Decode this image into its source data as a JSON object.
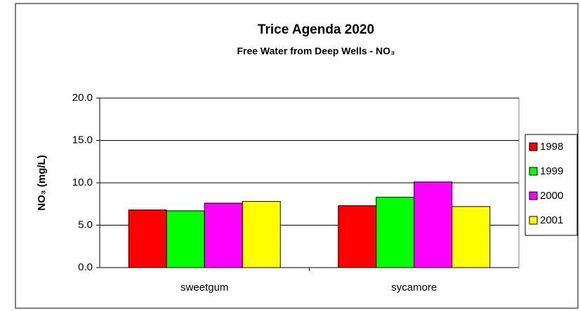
{
  "chart_data": {
    "type": "bar",
    "title": "Trice Agenda 2020",
    "subtitle": "Free Water from Deep Wells - NO₃",
    "y_label": "NO₃ (mg/L)",
    "categories": [
      "sweetgum",
      "sycamore"
    ],
    "series": [
      {
        "name": "1998",
        "color": "#ff0000",
        "values": [
          6.8,
          7.3
        ]
      },
      {
        "name": "1999",
        "color": "#00ff00",
        "values": [
          6.7,
          8.3
        ]
      },
      {
        "name": "2000",
        "color": "#ff00ff",
        "values": [
          7.6,
          10.1
        ]
      },
      {
        "name": "2001",
        "color": "#ffff00",
        "values": [
          7.8,
          7.2
        ]
      }
    ],
    "ylim": [
      0,
      20
    ],
    "yticks": [
      {
        "value": 0,
        "label": "0.0"
      },
      {
        "value": 5,
        "label": "5.0"
      },
      {
        "value": 10,
        "label": "10.0"
      },
      {
        "value": 15,
        "label": "15.0"
      },
      {
        "value": 20,
        "label": "20.0"
      }
    ],
    "grid": true,
    "legend": "right"
  }
}
